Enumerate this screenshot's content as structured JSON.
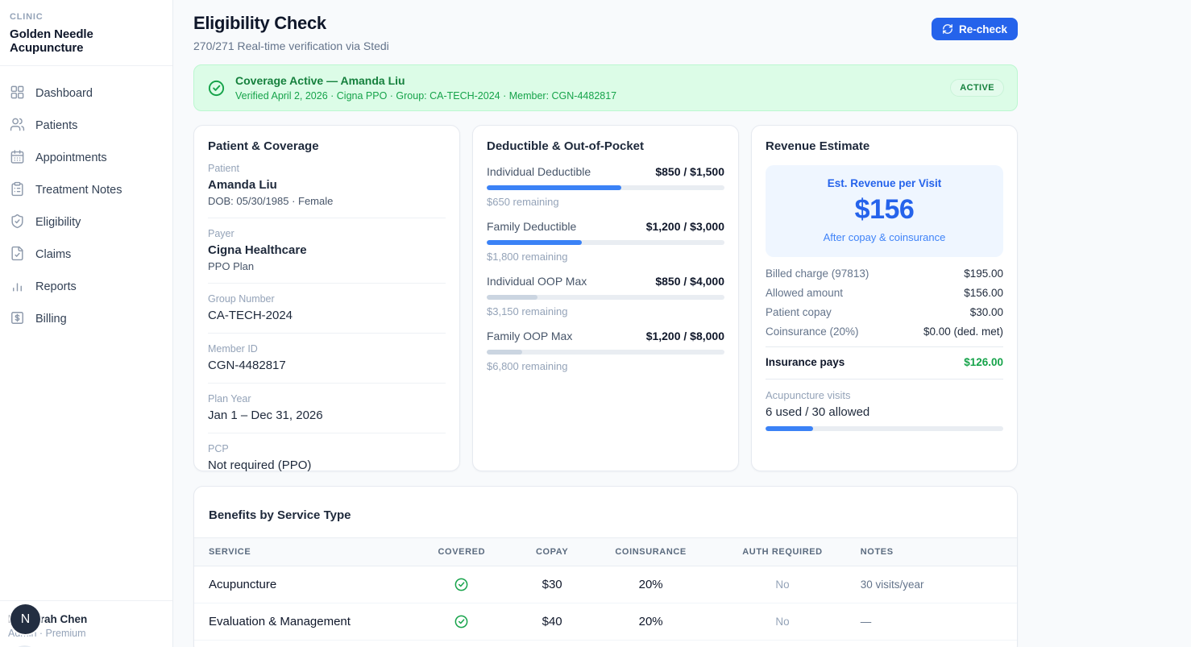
{
  "colors": {
    "accent": "#2563eb",
    "progress_blue": "#3b82f6",
    "progress_gray": "#cbd5e1",
    "success_green": "#16a34a"
  },
  "sidebar": {
    "clinic_label": "CLINIC",
    "clinic_name": "Golden Needle Acupuncture",
    "items": [
      {
        "label": "Dashboard",
        "icon": "dashboard-icon"
      },
      {
        "label": "Patients",
        "icon": "patients-icon"
      },
      {
        "label": "Appointments",
        "icon": "calendar-icon"
      },
      {
        "label": "Treatment Notes",
        "icon": "clipboard-icon"
      },
      {
        "label": "Eligibility",
        "icon": "shield-check-icon"
      },
      {
        "label": "Claims",
        "icon": "file-check-icon"
      },
      {
        "label": "Reports",
        "icon": "bar-chart-icon"
      },
      {
        "label": "Billing",
        "icon": "dollar-square-icon"
      }
    ],
    "user": {
      "initial": "N",
      "name": "Dr. Norah Chen",
      "meta": "Admin · Premium"
    }
  },
  "header": {
    "title": "Eligibility Check",
    "subtitle": "270/271 Real-time verification via Stedi",
    "recheck_label": "Re-check"
  },
  "banner": {
    "title": "Coverage Active — Amanda Liu",
    "details": "Verified April 2, 2026 · Cigna PPO · Group: CA-TECH-2024 · Member: CGN-4482817",
    "badge": "ACTIVE"
  },
  "patient_card": {
    "title": "Patient & Coverage",
    "fields": [
      {
        "label": "Patient",
        "value": "Amanda Liu",
        "sub": "DOB: 05/30/1985 · Female"
      },
      {
        "label": "Payer",
        "value": "Cigna Healthcare",
        "sub": "PPO Plan"
      },
      {
        "label": "Group Number",
        "value": "CA-TECH-2024"
      },
      {
        "label": "Member ID",
        "value": "CGN-4482817"
      },
      {
        "label": "Plan Year",
        "value": "Jan 1 – Dec 31, 2026"
      },
      {
        "label": "PCP",
        "value": "Not required (PPO)"
      }
    ]
  },
  "deductible_card": {
    "title": "Deductible & Out-of-Pocket",
    "rows": [
      {
        "label": "Individual Deductible",
        "value": "$850 / $1,500",
        "remaining": "$650 remaining",
        "pct": 56.7,
        "color": "#3b82f6"
      },
      {
        "label": "Family Deductible",
        "value": "$1,200 / $3,000",
        "remaining": "$1,800 remaining",
        "pct": 40,
        "color": "#3b82f6"
      },
      {
        "label": "Individual OOP Max",
        "value": "$850 / $4,000",
        "remaining": "$3,150 remaining",
        "pct": 21.3,
        "color": "#cbd5e1"
      },
      {
        "label": "Family OOP Max",
        "value": "$1,200 / $8,000",
        "remaining": "$6,800 remaining",
        "pct": 15,
        "color": "#cbd5e1"
      }
    ]
  },
  "revenue_card": {
    "title": "Revenue Estimate",
    "hero": {
      "label": "Est. Revenue per Visit",
      "amount": "$156",
      "sub": "After copay & coinsurance"
    },
    "rows": [
      {
        "label": "Billed charge (97813)",
        "value": "$195.00"
      },
      {
        "label": "Allowed amount",
        "value": "$156.00"
      },
      {
        "label": "Patient copay",
        "value": "$30.00"
      },
      {
        "label": "Coinsurance (20%)",
        "value": "$0.00 (ded. met)"
      }
    ],
    "total": {
      "label": "Insurance pays",
      "value": "$126.00",
      "value_color": "#16a34a"
    },
    "visits": {
      "label": "Acupuncture visits",
      "value": "6 used / 30 allowed",
      "pct": 20,
      "color": "#3b82f6"
    }
  },
  "benefits": {
    "title": "Benefits by Service Type",
    "columns": [
      "SERVICE",
      "COVERED",
      "COPAY",
      "COINSURANCE",
      "AUTH REQUIRED",
      "NOTES"
    ],
    "rows": [
      {
        "service": "Acupuncture",
        "covered": true,
        "covered_icon": "check-circle-icon",
        "copay": "$30",
        "coinsurance": "20%",
        "auth_required": "No",
        "notes": "30 visits/year"
      },
      {
        "service": "Evaluation & Management",
        "covered": true,
        "covered_icon": "check-circle-icon",
        "copay": "$40",
        "coinsurance": "20%",
        "auth_required": "No",
        "notes": "—"
      }
    ]
  }
}
